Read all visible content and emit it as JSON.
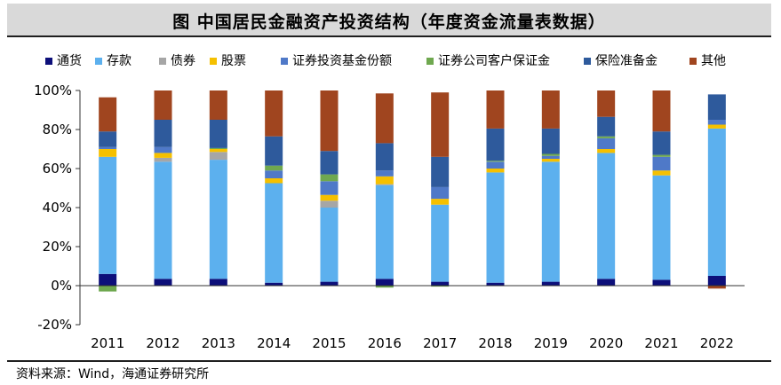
{
  "chart_data": {
    "type": "bar",
    "stacked": true,
    "title": "图  中国居民金融资产投资结构（年度资金流量表数据）",
    "source": "资料来源：Wind，海通证券研究所",
    "xlabel": "",
    "ylabel": "",
    "ylim": [
      -20,
      100
    ],
    "yticks": [
      "-20%",
      "0%",
      "20%",
      "40%",
      "60%",
      "80%",
      "100%"
    ],
    "ytick_values": [
      -20,
      0,
      20,
      40,
      60,
      80,
      100
    ],
    "legend_position": "top",
    "categories": [
      "2011",
      "2012",
      "2013",
      "2014",
      "2015",
      "2016",
      "2017",
      "2018",
      "2019",
      "2020",
      "2021",
      "2022"
    ],
    "series": [
      {
        "name": "通货",
        "color": "#0d0f7a",
        "values": [
          6,
          3.5,
          3.5,
          1.5,
          2,
          3.5,
          2,
          1.5,
          2,
          3.5,
          3,
          5
        ]
      },
      {
        "name": "存款",
        "color": "#5cb0ee",
        "values": [
          60,
          60,
          61,
          51,
          38,
          48,
          39.5,
          56.5,
          61.5,
          64.5,
          53.5,
          75.5
        ]
      },
      {
        "name": "债券",
        "color": "#a6a6a6",
        "values": [
          0,
          2,
          4,
          0,
          3.5,
          0.5,
          0,
          0,
          0,
          0,
          0,
          0
        ]
      },
      {
        "name": "股票",
        "color": "#f5c000",
        "values": [
          4,
          2.5,
          1.5,
          2.5,
          3,
          4,
          3,
          2,
          1.5,
          2,
          2.5,
          2
        ]
      },
      {
        "name": "证券投资基金份额",
        "color": "#4f79c8",
        "values": [
          1,
          3,
          0,
          4,
          7,
          3,
          6,
          3.5,
          1.5,
          5.5,
          7,
          2.5
        ]
      },
      {
        "name": "证券公司客户保证金",
        "color": "#6fa84f",
        "values": [
          -3,
          0,
          0.5,
          2.5,
          3.5,
          -1,
          -0.5,
          0.5,
          1,
          1,
          1,
          0
        ]
      },
      {
        "name": "保险准备金",
        "color": "#2e5a9c",
        "values": [
          8,
          14,
          14.5,
          15,
          12,
          14,
          15.5,
          16.5,
          13,
          10,
          12,
          13
        ]
      },
      {
        "name": "其他",
        "color": "#a0451f",
        "values": [
          17.5,
          15,
          15,
          23.5,
          31,
          25.5,
          33,
          19.5,
          19.5,
          13.5,
          21,
          -1.5
        ]
      }
    ]
  }
}
